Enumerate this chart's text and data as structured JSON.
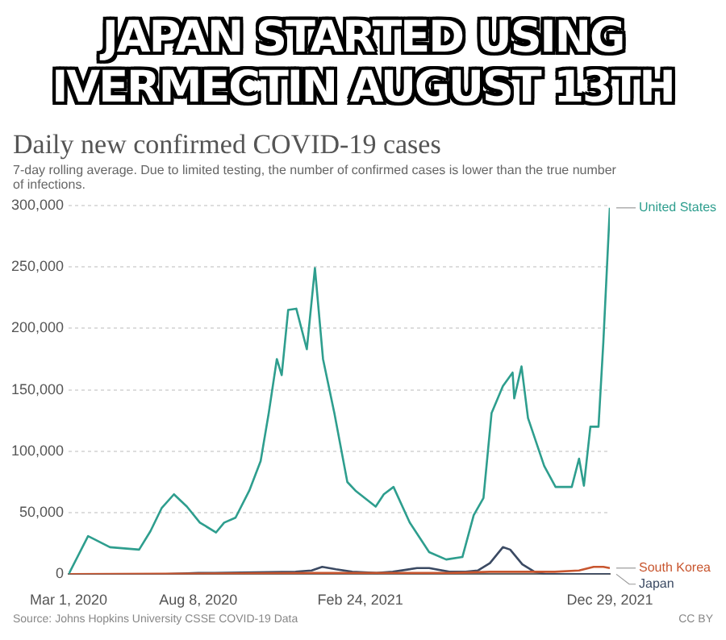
{
  "chart_data": {
    "type": "line",
    "title": "JAPAN STARTED USING IVERMECTIN AUGUST 13TH",
    "subtitle": "Daily new confirmed COVID-19 cases",
    "annotations": [
      "7-day rolling average. Due to limited testing, the number of confirmed cases is lower than the true number of infections.",
      "Source: Johns Hopkins University CSSE COVID-19 Data",
      "CC BY"
    ],
    "xlim": [
      "2020-03-01",
      "2021-12-29"
    ],
    "xticks": [
      {
        "value": "2020-03-01",
        "label": "Mar 1, 2020"
      },
      {
        "value": "2020-08-08",
        "label": "Aug 8, 2020"
      },
      {
        "value": "2021-02-24",
        "label": "Feb 24, 2021"
      },
      {
        "value": "2021-12-29",
        "label": "Dec 29, 2021"
      }
    ],
    "ylim": [
      0,
      300000
    ],
    "yticks": [
      {
        "value": 0,
        "label": "0"
      },
      {
        "value": 50000,
        "label": "50,000"
      },
      {
        "value": 100000,
        "label": "100,000"
      },
      {
        "value": 150000,
        "label": "150,000"
      },
      {
        "value": 200000,
        "label": "200,000"
      },
      {
        "value": 250000,
        "label": "250,000"
      },
      {
        "value": 300000,
        "label": "300,000"
      }
    ],
    "grid": "y",
    "legend": false,
    "marker": "none",
    "line_style": "solid",
    "series": [
      {
        "name": "United States",
        "color": "#2e9e8e",
        "x": [
          "2020-03-01",
          "2020-03-25",
          "2020-03-31",
          "2020-04-21",
          "2020-05-27",
          "2020-06-10",
          "2020-06-24",
          "2020-07-09",
          "2020-07-25",
          "2020-08-10",
          "2020-08-30",
          "2020-09-09",
          "2020-09-23",
          "2020-10-10",
          "2020-10-24",
          "2020-11-03",
          "2020-11-13",
          "2020-11-19",
          "2020-11-27",
          "2020-12-07",
          "2020-12-20",
          "2020-12-30",
          "2021-01-09",
          "2021-01-23",
          "2021-02-08",
          "2021-02-18",
          "2021-03-15",
          "2021-03-25",
          "2021-04-06",
          "2021-04-26",
          "2021-05-20",
          "2021-06-10",
          "2021-06-30",
          "2021-07-14",
          "2021-07-26",
          "2021-08-05",
          "2021-08-19",
          "2021-08-31",
          "2021-09-02",
          "2021-09-11",
          "2021-09-19",
          "2021-10-09",
          "2021-10-23",
          "2021-11-12",
          "2021-11-21",
          "2021-11-27",
          "2021-12-05",
          "2021-12-15",
          "2021-12-21",
          "2021-12-29"
        ],
        "values": [
          0,
          31000,
          29000,
          22000,
          20000,
          35000,
          54000,
          65000,
          55000,
          42000,
          34000,
          42000,
          46000,
          68000,
          92000,
          131000,
          175000,
          162000,
          215000,
          216000,
          183000,
          249000,
          175000,
          131000,
          75000,
          68000,
          55000,
          65000,
          71000,
          42000,
          18000,
          12000,
          14000,
          48000,
          62000,
          131000,
          153000,
          164000,
          143000,
          169000,
          127000,
          88000,
          71000,
          71000,
          94000,
          72000,
          120000,
          120000,
          189000,
          298000
        ]
      },
      {
        "name": "South Korea",
        "color": "#c8562f",
        "x": [
          "2020-03-01",
          "2020-12-26",
          "2021-06-14",
          "2021-08-03",
          "2021-10-22",
          "2021-11-21",
          "2021-12-09",
          "2021-12-21",
          "2021-12-29"
        ],
        "values": [
          0,
          1000,
          1000,
          2000,
          2000,
          3000,
          6000,
          6000,
          5000
        ]
      },
      {
        "name": "Japan",
        "color": "#3b4a63",
        "x": [
          "2020-03-01",
          "2020-06-29",
          "2020-08-08",
          "2020-08-28",
          "2020-12-06",
          "2020-12-26",
          "2021-01-08",
          "2021-01-25",
          "2021-02-14",
          "2021-03-16",
          "2021-04-05",
          "2021-05-05",
          "2021-05-20",
          "2021-06-14",
          "2021-07-04",
          "2021-07-19",
          "2021-08-03",
          "2021-08-19",
          "2021-08-28",
          "2021-09-12",
          "2021-09-27",
          "2021-10-12",
          "2021-12-29"
        ],
        "values": [
          0,
          0,
          1000,
          1000,
          2000,
          3000,
          6000,
          4000,
          2000,
          1000,
          2000,
          5000,
          5000,
          2000,
          2000,
          3000,
          9000,
          22000,
          20000,
          8000,
          2000,
          0,
          0
        ]
      }
    ]
  }
}
